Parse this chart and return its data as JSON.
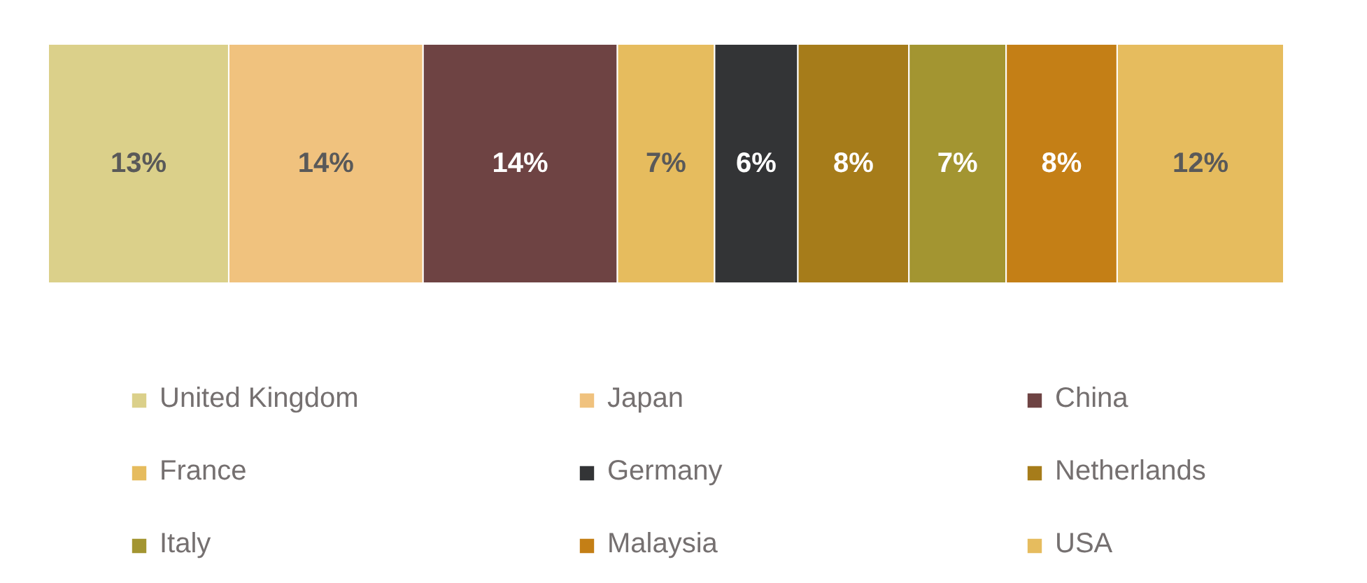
{
  "chart_data": {
    "type": "bar",
    "orientation": "horizontal",
    "stacked": true,
    "categories": [
      null
    ],
    "xlim": [
      0,
      89
    ],
    "tick_labels": false,
    "legend": "bottom",
    "series": [
      {
        "name": "United Kingdom",
        "color": "#dbd08a",
        "values": [
          13
        ],
        "value_labels": [
          "13%"
        ]
      },
      {
        "name": "Japan",
        "color": "#f0c27e",
        "values": [
          14
        ],
        "value_labels": [
          "14%"
        ]
      },
      {
        "name": "China",
        "color": "#6e4343",
        "values": [
          14
        ],
        "value_labels": [
          "14%"
        ]
      },
      {
        "name": "France",
        "color": "#e6bc5e",
        "values": [
          7
        ],
        "value_labels": [
          "7%"
        ]
      },
      {
        "name": "Germany",
        "color": "#333436",
        "values": [
          6
        ],
        "value_labels": [
          "6%"
        ]
      },
      {
        "name": "Netherlands",
        "color": "#a67c1a",
        "values": [
          8
        ],
        "value_labels": [
          "8%"
        ]
      },
      {
        "name": "Italy",
        "color": "#a39531",
        "values": [
          7
        ],
        "value_labels": [
          "7%"
        ]
      },
      {
        "name": "Malaysia",
        "color": "#c47f16",
        "values": [
          8
        ],
        "value_labels": [
          "8%"
        ]
      },
      {
        "name": "USA",
        "color": "#e6bc5e",
        "values": [
          12
        ],
        "value_labels": [
          "12%"
        ]
      }
    ]
  }
}
